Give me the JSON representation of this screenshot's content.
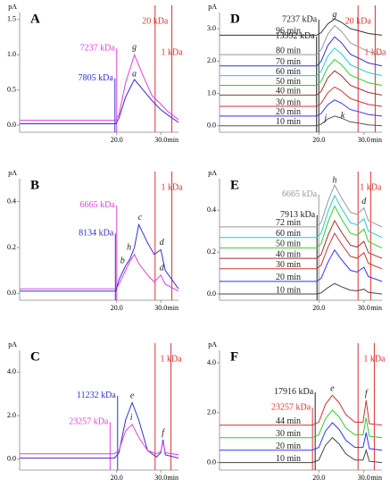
{
  "chart_data": [
    {
      "type": "line",
      "panel": "A",
      "y_label": "pA",
      "x_label": "min",
      "xlim": [
        -2,
        34
      ],
      "xticks": [
        {
          "value": 20,
          "label": "20.0"
        },
        {
          "value": 30,
          "label": "30.0"
        }
      ],
      "ylim": [
        -0.1,
        1.6
      ],
      "yticks": [
        {
          "value": 0,
          "label": "0.0"
        },
        {
          "value": 0.5,
          "label": "0.5"
        },
        {
          "value": 1,
          "label": "1.0"
        },
        {
          "value": 1.5,
          "label": "1.5"
        }
      ],
      "markers": [
        {
          "x": 20.0,
          "label": "7237 kDa",
          "color": "#e040e0"
        },
        {
          "x": 19.6,
          "label": "7805 kDa",
          "color": "#3030d0"
        },
        {
          "x": 28.7,
          "label": "20 kDa",
          "color": "#e03030"
        },
        {
          "x": 32.5,
          "label": "1 kDa",
          "color": "#e03030"
        }
      ],
      "peak_labels": [
        {
          "text": "g",
          "x": 24,
          "y": 1.1
        },
        {
          "text": "a",
          "x": 24,
          "y": 0.72
        }
      ],
      "x": [
        -2,
        19.8,
        20.5,
        22,
        24,
        26,
        28,
        30,
        31.5,
        34
      ],
      "series": [
        {
          "color": "#e040e0",
          "values": [
            0.07,
            0.07,
            0.15,
            0.6,
            1.0,
            0.7,
            0.42,
            0.3,
            0.2,
            0.08
          ]
        },
        {
          "color": "#3030d0",
          "values": [
            0.02,
            0.02,
            0.1,
            0.4,
            0.65,
            0.5,
            0.35,
            0.22,
            0.15,
            0.04
          ]
        }
      ]
    },
    {
      "type": "line",
      "panel": "B",
      "y_label": "pA",
      "x_label": "min",
      "xlim": [
        -2,
        34
      ],
      "xticks": [
        {
          "value": 20,
          "label": "20.0"
        },
        {
          "value": 30,
          "label": "30.0"
        }
      ],
      "ylim": [
        -0.03,
        0.5
      ],
      "yticks": [
        {
          "value": 0,
          "label": "0.0"
        },
        {
          "value": 0.2,
          "label": "0.2"
        },
        {
          "value": 0.4,
          "label": "0.4"
        }
      ],
      "markers": [
        {
          "x": 20.0,
          "label": "6665 kDa",
          "color": "#e040e0"
        },
        {
          "x": 19.7,
          "label": "8134 kDa",
          "color": "#3030d0"
        },
        {
          "x": 28.7,
          "color": "#e03030"
        },
        {
          "x": 32.5,
          "label": "1 kDa",
          "color": "#e03030"
        }
      ],
      "peak_labels": [
        {
          "text": "b",
          "x": 21.3,
          "y": 0.14
        },
        {
          "text": "h",
          "x": 22.8,
          "y": 0.2
        },
        {
          "text": "c",
          "x": 25.3,
          "y": 0.33
        },
        {
          "text": "d",
          "x": 30.2,
          "y": 0.22
        },
        {
          "text": "d",
          "x": 30.2,
          "y": 0.11
        }
      ],
      "x": [
        -2,
        19.8,
        20.5,
        22,
        23,
        24,
        25,
        27,
        28.5,
        30,
        31,
        34
      ],
      "series": [
        {
          "color": "#e040e0",
          "values": [
            0.02,
            0.02,
            0.04,
            0.1,
            0.14,
            0.17,
            0.13,
            0.08,
            0.05,
            0.08,
            0.04,
            0.01
          ]
        },
        {
          "color": "#3030d0",
          "values": [
            0.01,
            0.01,
            0.06,
            0.12,
            0.15,
            0.2,
            0.3,
            0.22,
            0.17,
            0.19,
            0.1,
            0.02
          ]
        }
      ]
    },
    {
      "type": "line",
      "panel": "C",
      "y_label": "pA",
      "x_label": "min",
      "xlim": [
        -2,
        34
      ],
      "xticks": [
        {
          "value": 20,
          "label": "20.0"
        },
        {
          "value": 30,
          "label": "30.0"
        }
      ],
      "ylim": [
        -0.5,
        5
      ],
      "yticks": [
        {
          "value": 0,
          "label": "0.0"
        },
        {
          "value": 2,
          "label": "2.0"
        },
        {
          "value": 4,
          "label": "4.0"
        }
      ],
      "markers": [
        {
          "x": 20.2,
          "label": "11232 kDa",
          "color": "#3030d0"
        },
        {
          "x": 18.5,
          "label": "23257 kDa",
          "color": "#e040e0"
        },
        {
          "x": 28.7,
          "color": "#e03030"
        },
        {
          "x": 32.3,
          "label": "1 kDa",
          "color": "#e03030"
        }
      ],
      "peak_labels": [
        {
          "text": "e",
          "x": 23.5,
          "y": 2.9
        },
        {
          "text": "i",
          "x": 23.3,
          "y": 1.9
        },
        {
          "text": "f",
          "x": 30.5,
          "y": 1.2
        }
      ],
      "x": [
        -2,
        19.5,
        20.5,
        22,
        23.5,
        25,
        27,
        29,
        30,
        30.5,
        31,
        34
      ],
      "series": [
        {
          "color": "#3030d0",
          "values": [
            0.05,
            0.05,
            0.3,
            1.8,
            2.6,
            1.8,
            0.4,
            0.1,
            0.3,
            0.9,
            0.2,
            0.05
          ]
        },
        {
          "color": "#e040e0",
          "values": [
            0.25,
            0.25,
            0.4,
            1.3,
            1.6,
            1.0,
            0.4,
            0.25,
            0.35,
            0.8,
            0.3,
            0.2
          ]
        }
      ]
    },
    {
      "type": "line",
      "panel": "D",
      "y_label": "pA",
      "x_label": "min",
      "xlim": [
        -2,
        34
      ],
      "xticks": [
        {
          "value": 20,
          "label": "20.0"
        },
        {
          "value": 30,
          "label": "30.0"
        }
      ],
      "ylim": [
        -0.2,
        3.5
      ],
      "yticks": [
        {
          "value": 0,
          "label": "0.0"
        },
        {
          "value": 1,
          "label": "1.0"
        },
        {
          "value": 2,
          "label": "2.0"
        },
        {
          "value": 3,
          "label": "3.0"
        }
      ],
      "markers": [
        {
          "x": 20.0,
          "label": "7237 kDa",
          "color": "#222222"
        },
        {
          "x": 19.5,
          "label": "13992 kDa",
          "color": "#222222"
        },
        {
          "x": 28.7,
          "label": "20 kDa",
          "color": "#e03030"
        },
        {
          "x": 32.5,
          "label": "1 kDa",
          "color": "#e03030"
        }
      ],
      "peak_labels": [
        {
          "text": "g",
          "x": 23.5,
          "y": 3.42
        },
        {
          "text": "j",
          "x": 21.5,
          "y": 0.22
        },
        {
          "text": "k",
          "x": 25.3,
          "y": 0.3
        }
      ],
      "x": [
        -2,
        19.5,
        20.5,
        22,
        23.5,
        25,
        27,
        29,
        31,
        34
      ],
      "series": [
        {
          "name": "96 min",
          "color": "#333333",
          "values": [
            2.8,
            2.8,
            2.88,
            3.15,
            3.3,
            3.2,
            3.0,
            2.93,
            2.85,
            2.8
          ]
        },
        {
          "name": "80 min",
          "color": "#999999",
          "values": [
            2.2,
            2.2,
            2.34,
            2.83,
            3.1,
            2.92,
            2.56,
            2.43,
            2.29,
            2.2
          ]
        },
        {
          "name": "70 min",
          "color": "#3333cc",
          "values": [
            1.85,
            1.85,
            1.99,
            2.48,
            2.75,
            2.57,
            2.21,
            2.08,
            1.94,
            1.85
          ]
        },
        {
          "name": "60 min",
          "color": "#22cccc",
          "values": [
            1.55,
            1.55,
            1.68,
            2.15,
            2.4,
            2.23,
            1.89,
            1.76,
            1.64,
            1.55
          ]
        },
        {
          "name": "50 min",
          "color": "#33cc33",
          "values": [
            1.25,
            1.25,
            1.37,
            1.81,
            2.05,
            1.89,
            1.57,
            1.45,
            1.33,
            1.25
          ]
        },
        {
          "name": "40 min",
          "color": "#993333",
          "values": [
            0.95,
            0.95,
            1.06,
            1.48,
            1.7,
            1.55,
            1.25,
            1.14,
            1.03,
            0.95
          ]
        },
        {
          "name": "30 min",
          "color": "#cc3333",
          "values": [
            0.6,
            0.6,
            0.69,
            1.02,
            1.2,
            1.08,
            0.84,
            0.75,
            0.66,
            0.6
          ]
        },
        {
          "name": "20 min",
          "color": "#3333ff",
          "values": [
            0.3,
            0.3,
            0.38,
            0.65,
            0.8,
            0.7,
            0.5,
            0.43,
            0.35,
            0.3
          ]
        },
        {
          "name": "10 min",
          "color": "#555555",
          "values": [
            0,
            0,
            0.05,
            0.21,
            0.3,
            0.24,
            0.12,
            0.08,
            0.03,
            0
          ]
        }
      ]
    },
    {
      "type": "line",
      "panel": "E",
      "y_label": "pA",
      "x_label": "min",
      "xlim": [
        -2,
        34
      ],
      "xticks": [
        {
          "value": 20,
          "label": "20.0"
        },
        {
          "value": 30,
          "label": "30.0"
        }
      ],
      "ylim": [
        -0.03,
        0.55
      ],
      "yticks": [
        {
          "value": 0,
          "label": "0.0"
        },
        {
          "value": 0.2,
          "label": "0.2"
        },
        {
          "value": 0.4,
          "label": "0.4"
        }
      ],
      "markers": [
        {
          "x": 20.0,
          "label": "6665 kDa",
          "color": "#999999"
        },
        {
          "x": 19.6,
          "label": "7913 kDa",
          "color": "#222222"
        },
        {
          "x": 28.7,
          "color": "#e03030"
        },
        {
          "x": 31.5,
          "label": "1 kDa",
          "color": "#e03030"
        }
      ],
      "peak_labels": [
        {
          "text": "h",
          "x": 23.5,
          "y": 0.54
        },
        {
          "text": "d",
          "x": 30,
          "y": 0.44
        }
      ],
      "x": [
        -2,
        19.5,
        20.5,
        22,
        23.5,
        25,
        27,
        28.5,
        30,
        31,
        34
      ],
      "series": [
        {
          "name": "72 min",
          "color": "#999999",
          "values": [
            0.32,
            0.32,
            0.34,
            0.44,
            0.52,
            0.46,
            0.39,
            0.38,
            0.41,
            0.35,
            0.32
          ]
        },
        {
          "name": "60 min",
          "color": "#22cccc",
          "values": [
            0.27,
            0.27,
            0.29,
            0.39,
            0.47,
            0.41,
            0.34,
            0.33,
            0.36,
            0.3,
            0.27
          ]
        },
        {
          "name": "50 min",
          "color": "#33cc33",
          "values": [
            0.22,
            0.22,
            0.24,
            0.34,
            0.42,
            0.36,
            0.29,
            0.28,
            0.31,
            0.25,
            0.22
          ]
        },
        {
          "name": "40 min",
          "color": "#993333",
          "values": [
            0.17,
            0.17,
            0.188,
            0.278,
            0.35,
            0.296,
            0.233,
            0.224,
            0.251,
            0.197,
            0.17
          ]
        },
        {
          "name": "30 min",
          "color": "#cc3333",
          "values": [
            0.12,
            0.12,
            0.137,
            0.222,
            0.29,
            0.239,
            0.18,
            0.171,
            0.197,
            0.146,
            0.12
          ]
        },
        {
          "name": "20 min",
          "color": "#3333ff",
          "values": [
            0.06,
            0.06,
            0.075,
            0.15,
            0.21,
            0.165,
            0.113,
            0.105,
            0.128,
            0.083,
            0.06
          ]
        },
        {
          "name": "10 min",
          "color": "#444444",
          "values": [
            0,
            0,
            0.005,
            0.03,
            0.05,
            0.035,
            0.018,
            0.015,
            0.023,
            0.008,
            0
          ]
        }
      ]
    },
    {
      "type": "line",
      "panel": "F",
      "y_label": "pA",
      "x_label": "min",
      "xlim": [
        -2,
        34
      ],
      "xticks": [
        {
          "value": 20,
          "label": "20.0"
        },
        {
          "value": 30,
          "label": "30.0"
        }
      ],
      "ylim": [
        -0.3,
        4.5
      ],
      "yticks": [
        {
          "value": 0,
          "label": "0.0"
        },
        {
          "value": 2,
          "label": "2.0"
        },
        {
          "value": 4,
          "label": "4.0"
        }
      ],
      "markers": [
        {
          "x": 19.2,
          "label": "17916 kDa",
          "color": "#222222"
        },
        {
          "x": 18.6,
          "label": "23257 kDa",
          "color": "#e03030"
        },
        {
          "x": 28.7,
          "color": "#e03030"
        },
        {
          "x": 32.3,
          "label": "1 kDa",
          "color": "#e03030"
        }
      ],
      "peak_labels": [
        {
          "text": "e",
          "x": 23,
          "y": 2.95
        },
        {
          "text": "f",
          "x": 30.5,
          "y": 2.75
        }
      ],
      "x": [
        -2,
        18.5,
        20,
        21.5,
        23,
        24.5,
        26,
        28,
        29.8,
        30.5,
        31.2,
        34
      ],
      "series": [
        {
          "name": "44 min",
          "color": "#cc3333",
          "values": [
            1.5,
            1.5,
            1.62,
            2.34,
            2.7,
            2.4,
            1.92,
            1.62,
            1.62,
            2.5,
            1.56,
            1.5
          ]
        },
        {
          "name": "30 min",
          "color": "#33cc33",
          "values": [
            1,
            1,
            1.11,
            1.77,
            2.1,
            1.83,
            1.39,
            1.11,
            1.11,
            1.8,
            1.06,
            1
          ]
        },
        {
          "name": "20 min",
          "color": "#3333ff",
          "values": [
            0.5,
            0.5,
            0.61,
            1.27,
            1.6,
            1.33,
            0.89,
            0.61,
            0.61,
            1.2,
            0.56,
            0.5
          ]
        },
        {
          "name": "10 min",
          "color": "#444444",
          "values": [
            0,
            0,
            0.1,
            0.7,
            1.0,
            0.75,
            0.35,
            0.1,
            0.1,
            0.5,
            0.05,
            0
          ]
        }
      ]
    }
  ]
}
